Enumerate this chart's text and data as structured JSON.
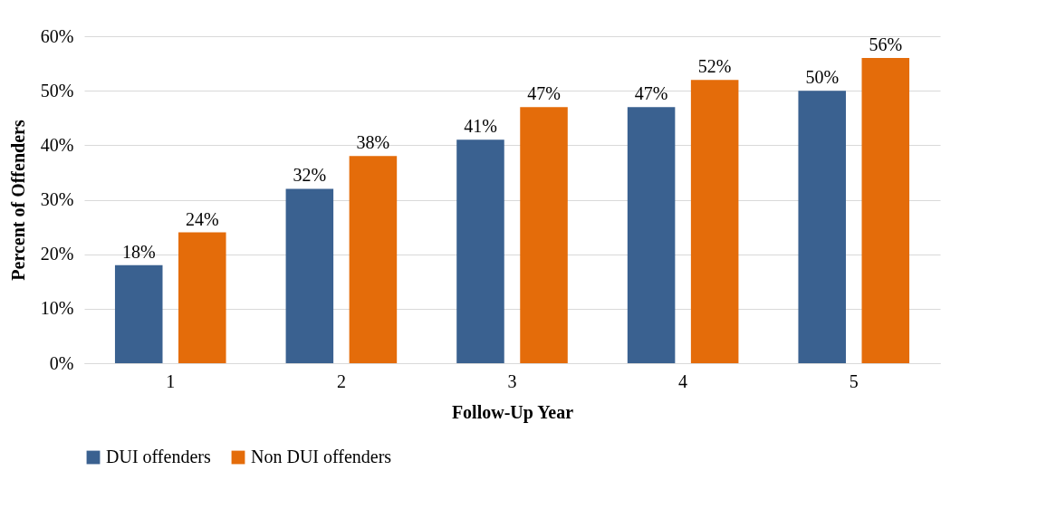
{
  "chart_data": {
    "type": "bar",
    "xlabel": "Follow-Up Year",
    "ylabel": "Percent of Offenders",
    "categories": [
      "1",
      "2",
      "3",
      "4",
      "5"
    ],
    "series": [
      {
        "name": "DUI offenders",
        "color": "#3a6190",
        "values": [
          18,
          32,
          41,
          47,
          50
        ],
        "value_labels": [
          "18%",
          "32%",
          "41%",
          "47%",
          "50%"
        ]
      },
      {
        "name": "Non DUI offenders",
        "color": "#e46c0a",
        "values": [
          24,
          38,
          47,
          52,
          56
        ],
        "value_labels": [
          "24%",
          "38%",
          "47%",
          "52%",
          "56%"
        ]
      }
    ],
    "ylim": [
      0,
      60
    ],
    "yticks": [
      {
        "value": 0,
        "label": "0%"
      },
      {
        "value": 10,
        "label": "10%"
      },
      {
        "value": 20,
        "label": "20%"
      },
      {
        "value": 30,
        "label": "30%"
      },
      {
        "value": 40,
        "label": "40%"
      },
      {
        "value": 50,
        "label": "50%"
      },
      {
        "value": 60,
        "label": "60%"
      }
    ],
    "grid": "y",
    "legend": "bottom"
  }
}
